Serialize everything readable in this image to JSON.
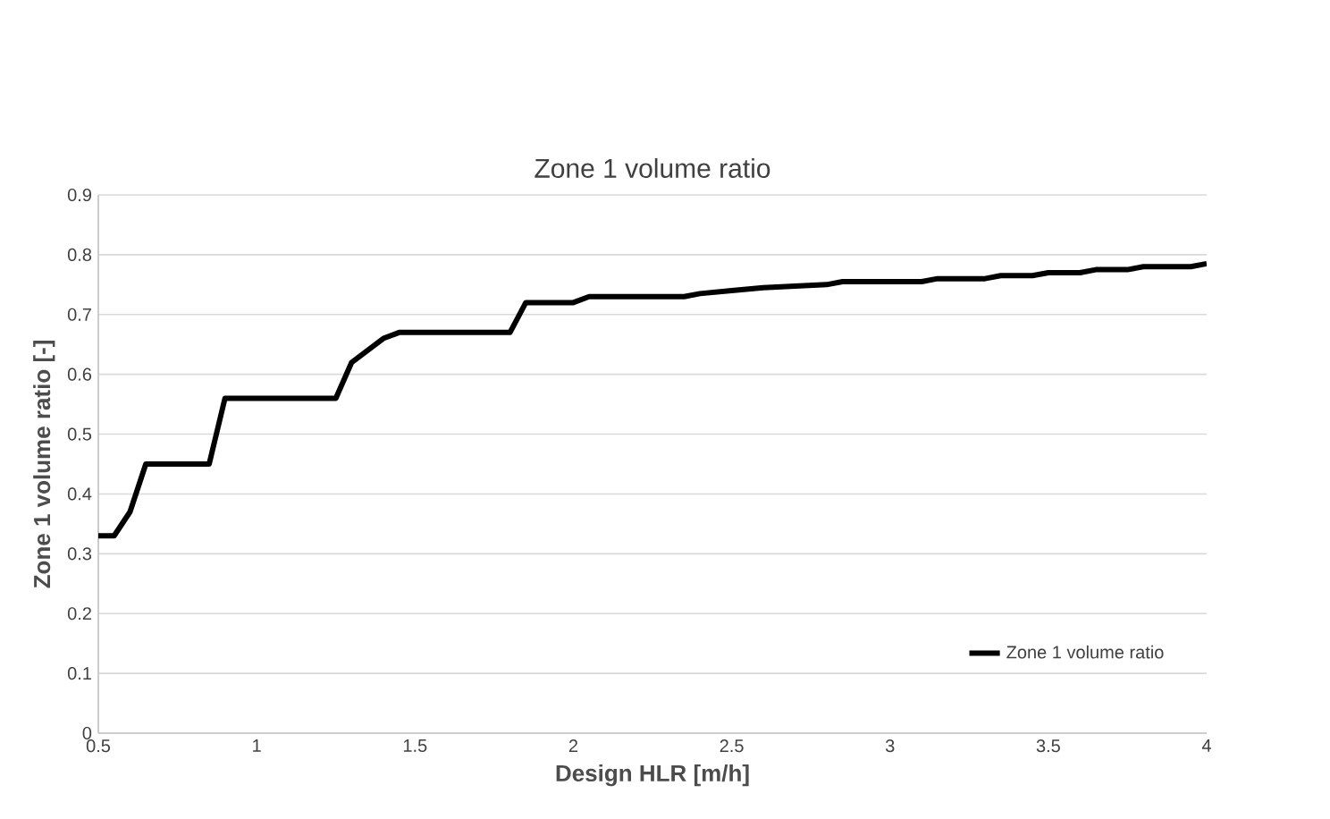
{
  "chart_data": {
    "type": "line",
    "title": "Zone 1 volume ratio",
    "xlabel": "Design HLR [m/h]",
    "ylabel": "Zone 1 volume ratio [-]",
    "x": [
      0.5,
      0.55,
      0.6,
      0.65,
      0.85,
      0.9,
      1.25,
      1.3,
      1.35,
      1.4,
      1.45,
      1.8,
      1.85,
      2.0,
      2.05,
      2.35,
      2.4,
      2.5,
      2.6,
      2.8,
      2.85,
      3.1,
      3.15,
      3.3,
      3.35,
      3.45,
      3.5,
      3.6,
      3.65,
      3.75,
      3.8,
      3.95,
      4.0
    ],
    "series": [
      {
        "name": "Zone 1 volume ratio",
        "color": "#000000",
        "values": [
          0.33,
          0.33,
          0.37,
          0.45,
          0.45,
          0.56,
          0.56,
          0.62,
          0.64,
          0.66,
          0.67,
          0.67,
          0.72,
          0.72,
          0.73,
          0.73,
          0.735,
          0.74,
          0.745,
          0.75,
          0.755,
          0.755,
          0.76,
          0.76,
          0.765,
          0.765,
          0.77,
          0.77,
          0.775,
          0.775,
          0.78,
          0.78,
          0.785
        ]
      }
    ],
    "xlim": [
      0.5,
      4
    ],
    "xticks": [
      0.5,
      1,
      1.5,
      2,
      2.5,
      3,
      3.5,
      4
    ],
    "ylim": [
      0,
      0.9
    ],
    "yticks": [
      0,
      0.1,
      0.2,
      0.3,
      0.4,
      0.5,
      0.6,
      0.7,
      0.8,
      0.9
    ],
    "grid": "y",
    "legend": "bottom right",
    "marker": "none",
    "line_style": "solid"
  }
}
